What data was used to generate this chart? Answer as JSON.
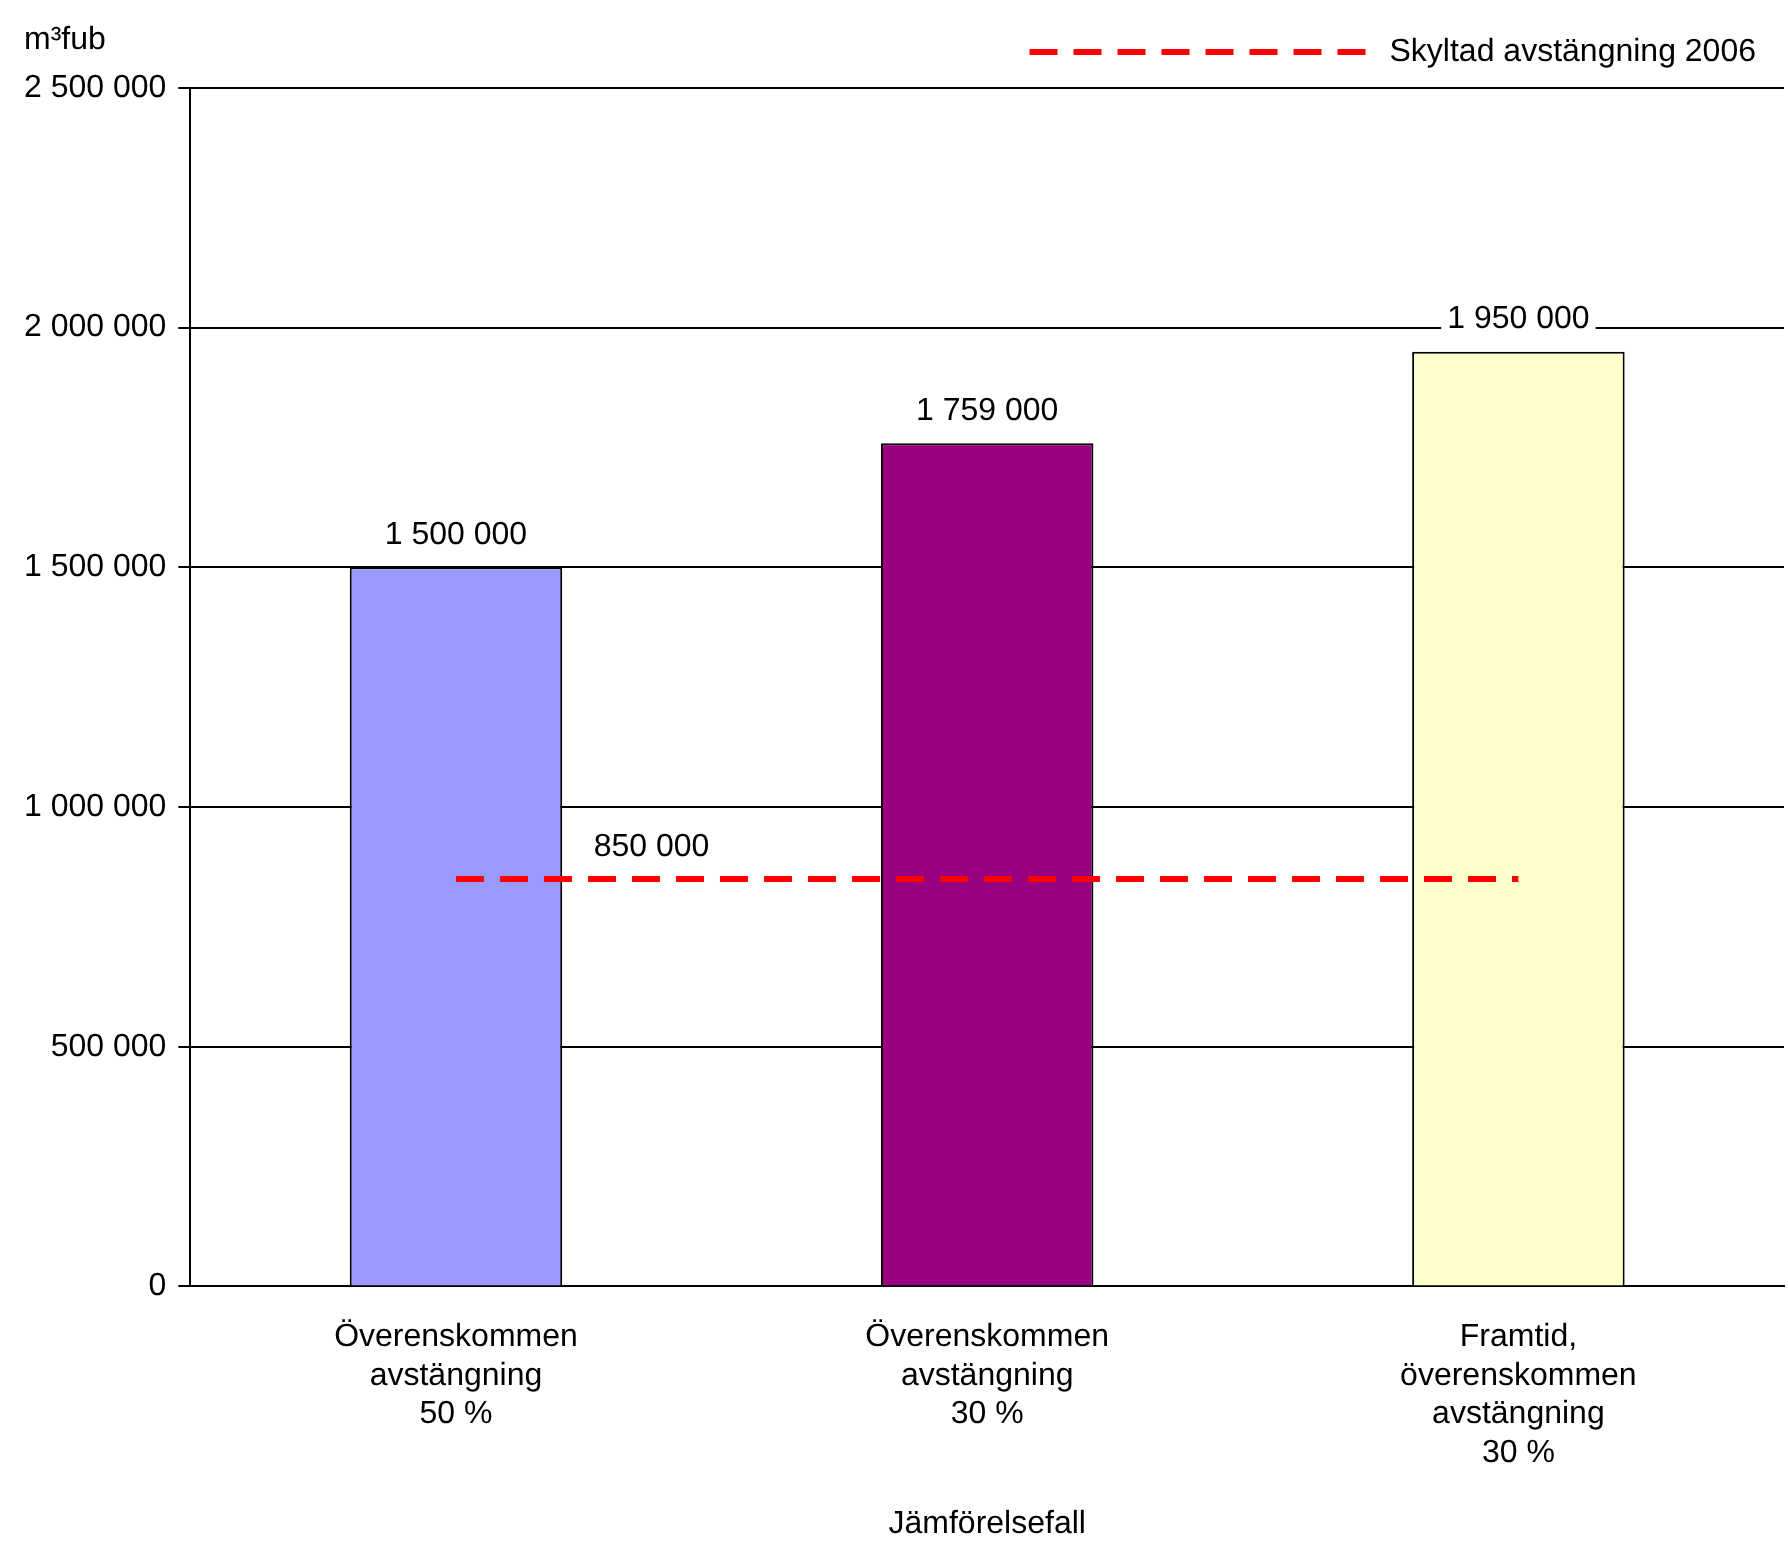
{
  "chart_data": {
    "type": "bar",
    "ylabel": "m³fub",
    "xlabel": "Jämförelsefall",
    "categories": [
      "Överenskommen\navstängning\n50 %",
      "Överenskommen\navstängning\n30 %",
      "Framtid,\növerenskommen\navstängning\n30 %"
    ],
    "series": [
      {
        "colors": [
          "#9999ff",
          "#990080",
          "#ffffcc"
        ],
        "values": [
          1500000,
          1759000,
          1950000
        ],
        "value_labels": [
          "1 500 000",
          "1 759 000",
          "1 950 000"
        ]
      },
      {
        "type": "line",
        "name": "Skyltad avstängning 2006",
        "color": "#ff0000",
        "values": [
          850000,
          850000,
          850000
        ],
        "line_style": "dashed",
        "marker": "none"
      }
    ],
    "annotations": [
      {
        "text": "850 000",
        "y": 850000
      }
    ],
    "ylim": [
      0,
      2500000
    ],
    "yticks": [
      {
        "value": 0,
        "label": "0"
      },
      {
        "value": 500000,
        "label": "500 000"
      },
      {
        "value": 1000000,
        "label": "1 000 000"
      },
      {
        "value": 1500000,
        "label": "1 500 000"
      },
      {
        "value": 2000000,
        "label": "2 000 000"
      },
      {
        "value": 2500000,
        "label": "2 500 000"
      }
    ],
    "grid": "y",
    "legend": "top right"
  }
}
